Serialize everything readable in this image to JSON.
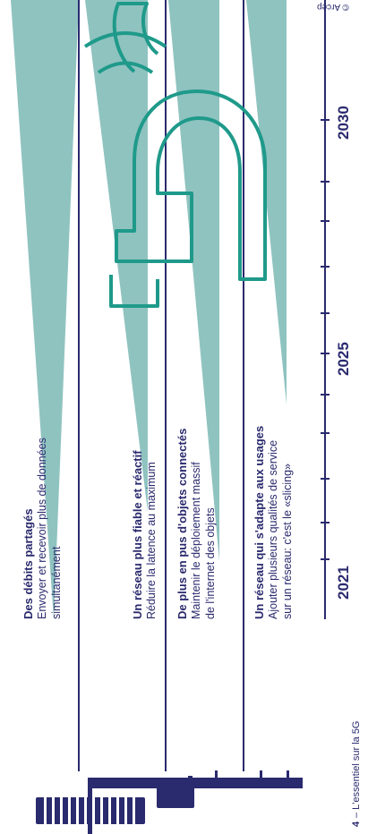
{
  "page_label": {
    "number": "4",
    "text": "– L'essentiel sur la 5G"
  },
  "copyright": "© Arcep",
  "logo_text": "5G",
  "sections": [
    {
      "title": "Des débits partagés",
      "line1": "Envoyer et recevoir plus de données",
      "line2": "simultanément"
    },
    {
      "title": "Un réseau plus fiable et réactif",
      "line1": "Réduire la latence au maximum",
      "line2": ""
    },
    {
      "title": "De plus en pus d'objets connectés",
      "line1": "Maintenir le déploiement massif",
      "line2": "de l'internet des objets"
    },
    {
      "title": "Un réseau qui s'adapte aux usages",
      "line1": "Ajouter plusieurs qualités de service",
      "line2": "sur un réseau: c'est le «slicing»"
    }
  ],
  "axis": {
    "labels": [
      "2021",
      "2025",
      "2030"
    ]
  },
  "colors": {
    "navy": "#2a2a6e",
    "teal": "#8fc3c0",
    "logo": "#1f9a8a"
  }
}
